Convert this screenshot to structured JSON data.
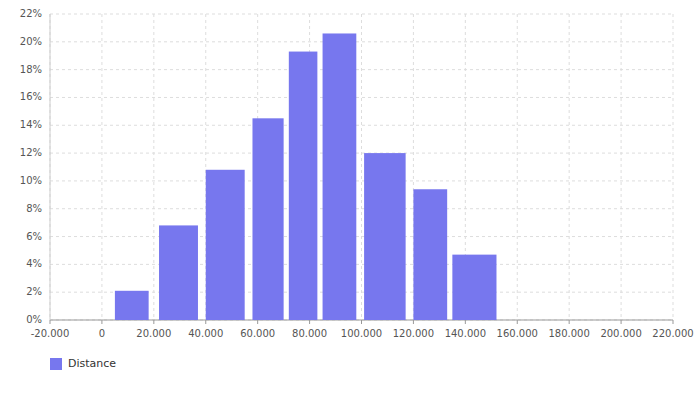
{
  "chart_data": {
    "type": "bar",
    "series": [
      {
        "name": "Distance",
        "color": "#7777EE",
        "x_left": [
          5000,
          22000,
          40000,
          58000,
          72000,
          85000,
          101000,
          120000,
          135000
        ],
        "x_right": [
          18000,
          37000,
          55000,
          70000,
          83000,
          98000,
          117000,
          133000,
          152000
        ],
        "values": [
          0.021,
          0.068,
          0.108,
          0.145,
          0.193,
          0.206,
          0.12,
          0.094,
          0.047
        ]
      }
    ],
    "xlim": [
      -20000,
      220000
    ],
    "ylim": [
      0,
      0.22
    ],
    "xticks": [
      {
        "value": -20000,
        "label": "-20.000"
      },
      0,
      {
        "value": 20000,
        "label": "20.000"
      },
      {
        "value": 40000,
        "label": "40.000"
      },
      {
        "value": 60000,
        "label": "60.000"
      },
      {
        "value": 80000,
        "label": "80.000"
      },
      {
        "value": 100000,
        "label": "100.000"
      },
      {
        "value": 120000,
        "label": "120.000"
      },
      {
        "value": 140000,
        "label": "140.000"
      },
      {
        "value": 160000,
        "label": "160.000"
      },
      {
        "value": 180000,
        "label": "180.000"
      },
      {
        "value": 200000,
        "label": "200.000"
      },
      {
        "value": 220000,
        "label": "220.000"
      }
    ],
    "yticks": [
      {
        "value": 0.0,
        "label": "0%"
      },
      {
        "value": 0.02,
        "label": "2%"
      },
      {
        "value": 0.04,
        "label": "4%"
      },
      {
        "value": 0.06,
        "label": "6%"
      },
      {
        "value": 0.08,
        "label": "8%"
      },
      {
        "value": 0.1,
        "label": "10%"
      },
      {
        "value": 0.12,
        "label": "12%"
      },
      {
        "value": 0.14,
        "label": "14%"
      },
      {
        "value": 0.16,
        "label": "16%"
      },
      {
        "value": 0.18,
        "label": "18%"
      },
      {
        "value": 0.2,
        "label": "20%"
      },
      {
        "value": 0.22,
        "label": "22%"
      }
    ],
    "grid": true,
    "legend": "bottom"
  }
}
